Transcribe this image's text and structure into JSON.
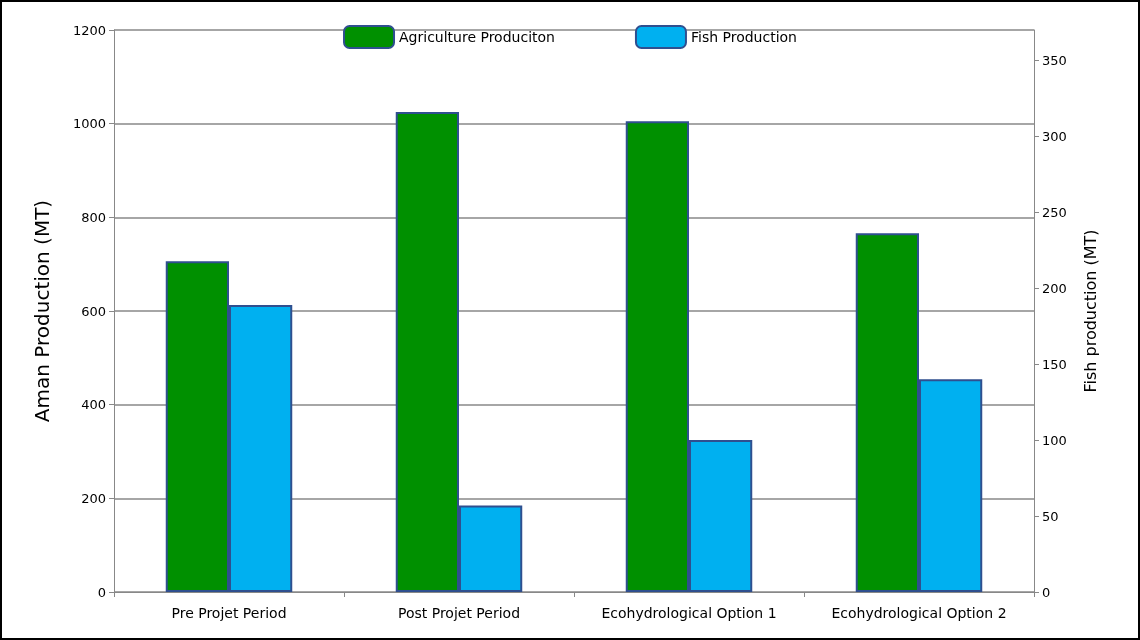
{
  "chart_data": {
    "type": "bar",
    "ylabel": "Aman Production (MT)",
    "y2label": "Fish production (MT)",
    "categories": [
      "Pre Projet Period",
      "Post Projet Period",
      "Ecohydrological Option 1",
      "Ecohydrological Option 2"
    ],
    "series": [
      {
        "name": "Agriculture Produciton",
        "color": "#009000",
        "values": [
          706,
          1025,
          1005,
          766
        ]
      },
      {
        "name": "Fish Production",
        "color": "#00b0f0",
        "values": [
          189,
          57,
          100,
          140
        ],
        "axis": "y2"
      }
    ],
    "ylim": [
      0,
      1200
    ],
    "yticks": [
      0,
      200,
      400,
      600,
      800,
      1000,
      1200
    ],
    "y2lim": [
      0,
      370
    ],
    "y2ticks": [
      0,
      50,
      100,
      150,
      200,
      250,
      300,
      350
    ],
    "grid": "y",
    "legend": "top"
  }
}
